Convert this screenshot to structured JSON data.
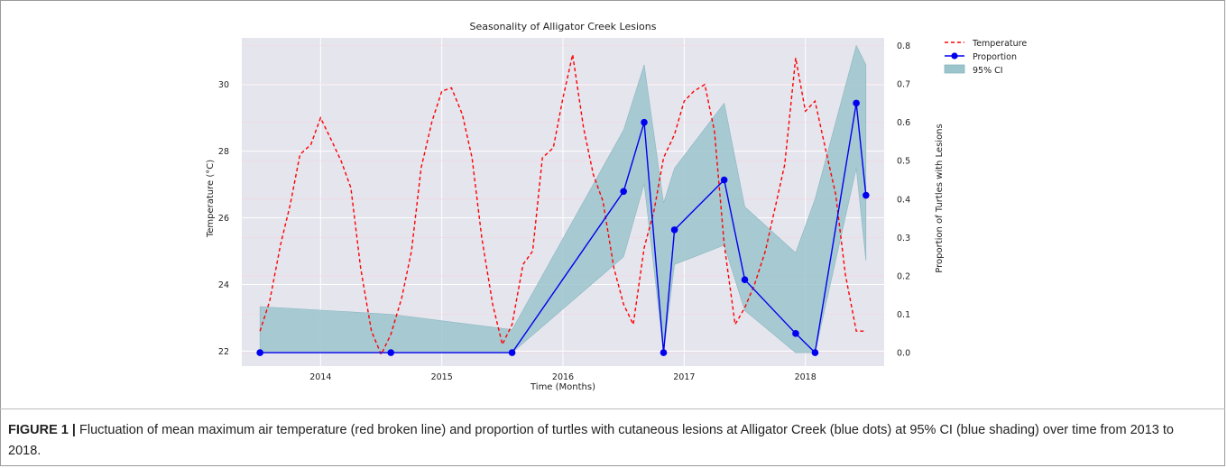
{
  "caption": {
    "label": "FIGURE 1 |",
    "text": "Fluctuation of mean maximum air temperature (red broken line) and proportion of turtles with cutaneous lesions at Alligator Creek (blue dots) at 95% CI (blue shading) over time from 2013 to 2018."
  },
  "chart_data": {
    "type": "line",
    "title": "Seasonality of Alligator Creek Lesions",
    "xlabel": "Time (Months)",
    "ylabel": "Temperature (°C)",
    "y2label": "Proportion of Turtles with Lesions",
    "xlim": [
      2013.35,
      2018.65
    ],
    "ylim": [
      21.55,
      31.4
    ],
    "y2lim": [
      -0.035,
      0.82
    ],
    "x_ticks": [
      "2014",
      "2015",
      "2016",
      "2017",
      "2018"
    ],
    "y_ticks": [
      "22",
      "24",
      "26",
      "28",
      "30"
    ],
    "y2_ticks": [
      "0.0",
      "0.1",
      "0.2",
      "0.3",
      "0.4",
      "0.5",
      "0.6",
      "0.7",
      "0.8"
    ],
    "grid": true,
    "legend_position": "outside-top-right",
    "colors": {
      "temperature": "#ff0000",
      "proportion": "#0000ee",
      "ci_fill": "#9cc4cc",
      "background": "#e5e5ee",
      "grid": "#ffffff"
    },
    "series": [
      {
        "name": "Temperature",
        "axis": "left",
        "style": "dashed",
        "x": [
          2013.5,
          2013.58,
          2013.67,
          2013.75,
          2013.83,
          2013.92,
          2014.0,
          2014.08,
          2014.17,
          2014.25,
          2014.33,
          2014.42,
          2014.5,
          2014.58,
          2014.67,
          2014.75,
          2014.83,
          2014.92,
          2015.0,
          2015.08,
          2015.17,
          2015.25,
          2015.33,
          2015.42,
          2015.5,
          2015.58,
          2015.67,
          2015.75,
          2015.83,
          2015.92,
          2016.0,
          2016.08,
          2016.17,
          2016.25,
          2016.33,
          2016.42,
          2016.5,
          2016.58,
          2016.67,
          2016.75,
          2016.83,
          2016.92,
          2017.0,
          2017.08,
          2017.17,
          2017.25,
          2017.33,
          2017.42,
          2017.5,
          2017.58,
          2017.67,
          2017.75,
          2017.83,
          2017.92,
          2018.0,
          2018.08,
          2018.17,
          2018.25,
          2018.33,
          2018.42,
          2018.5
        ],
        "values": [
          22.6,
          23.5,
          25.2,
          26.4,
          27.9,
          28.2,
          29.0,
          28.4,
          27.7,
          26.9,
          24.5,
          22.6,
          21.9,
          22.5,
          23.6,
          25.0,
          27.5,
          28.9,
          29.8,
          29.9,
          29.1,
          27.8,
          25.4,
          23.4,
          22.2,
          22.8,
          24.6,
          25.0,
          27.8,
          28.1,
          29.6,
          30.9,
          28.7,
          27.3,
          26.5,
          24.5,
          23.4,
          22.8,
          25.1,
          26.2,
          27.8,
          28.5,
          29.5,
          29.8,
          30.0,
          28.6,
          25.2,
          22.8,
          23.3,
          24.0,
          25.0,
          26.3,
          27.6,
          30.8,
          29.2,
          29.5,
          28.0,
          26.7,
          24.3,
          22.6,
          22.6
        ]
      },
      {
        "name": "Proportion",
        "axis": "right",
        "style": "solid-markers",
        "x": [
          2013.5,
          2014.58,
          2015.58,
          2016.5,
          2016.67,
          2016.83,
          2016.92,
          2017.33,
          2017.5,
          2017.92,
          2018.08,
          2018.42,
          2018.5
        ],
        "values": [
          0.0,
          0.0,
          0.0,
          0.42,
          0.6,
          0.0,
          0.32,
          0.45,
          0.19,
          0.05,
          0.0,
          0.65,
          0.41
        ]
      },
      {
        "name": "95% CI",
        "axis": "right",
        "style": "band",
        "x": [
          2013.5,
          2014.58,
          2015.58,
          2016.5,
          2016.67,
          2016.83,
          2016.92,
          2017.33,
          2017.5,
          2017.92,
          2018.08,
          2018.42,
          2018.5
        ],
        "lower": [
          0.0,
          0.0,
          0.0,
          0.25,
          0.44,
          0.0,
          0.23,
          0.28,
          0.11,
          0.0,
          0.0,
          0.48,
          0.24
        ],
        "upper": [
          0.12,
          0.1,
          0.06,
          0.58,
          0.75,
          0.39,
          0.48,
          0.65,
          0.38,
          0.26,
          0.4,
          0.8,
          0.75
        ]
      }
    ]
  }
}
